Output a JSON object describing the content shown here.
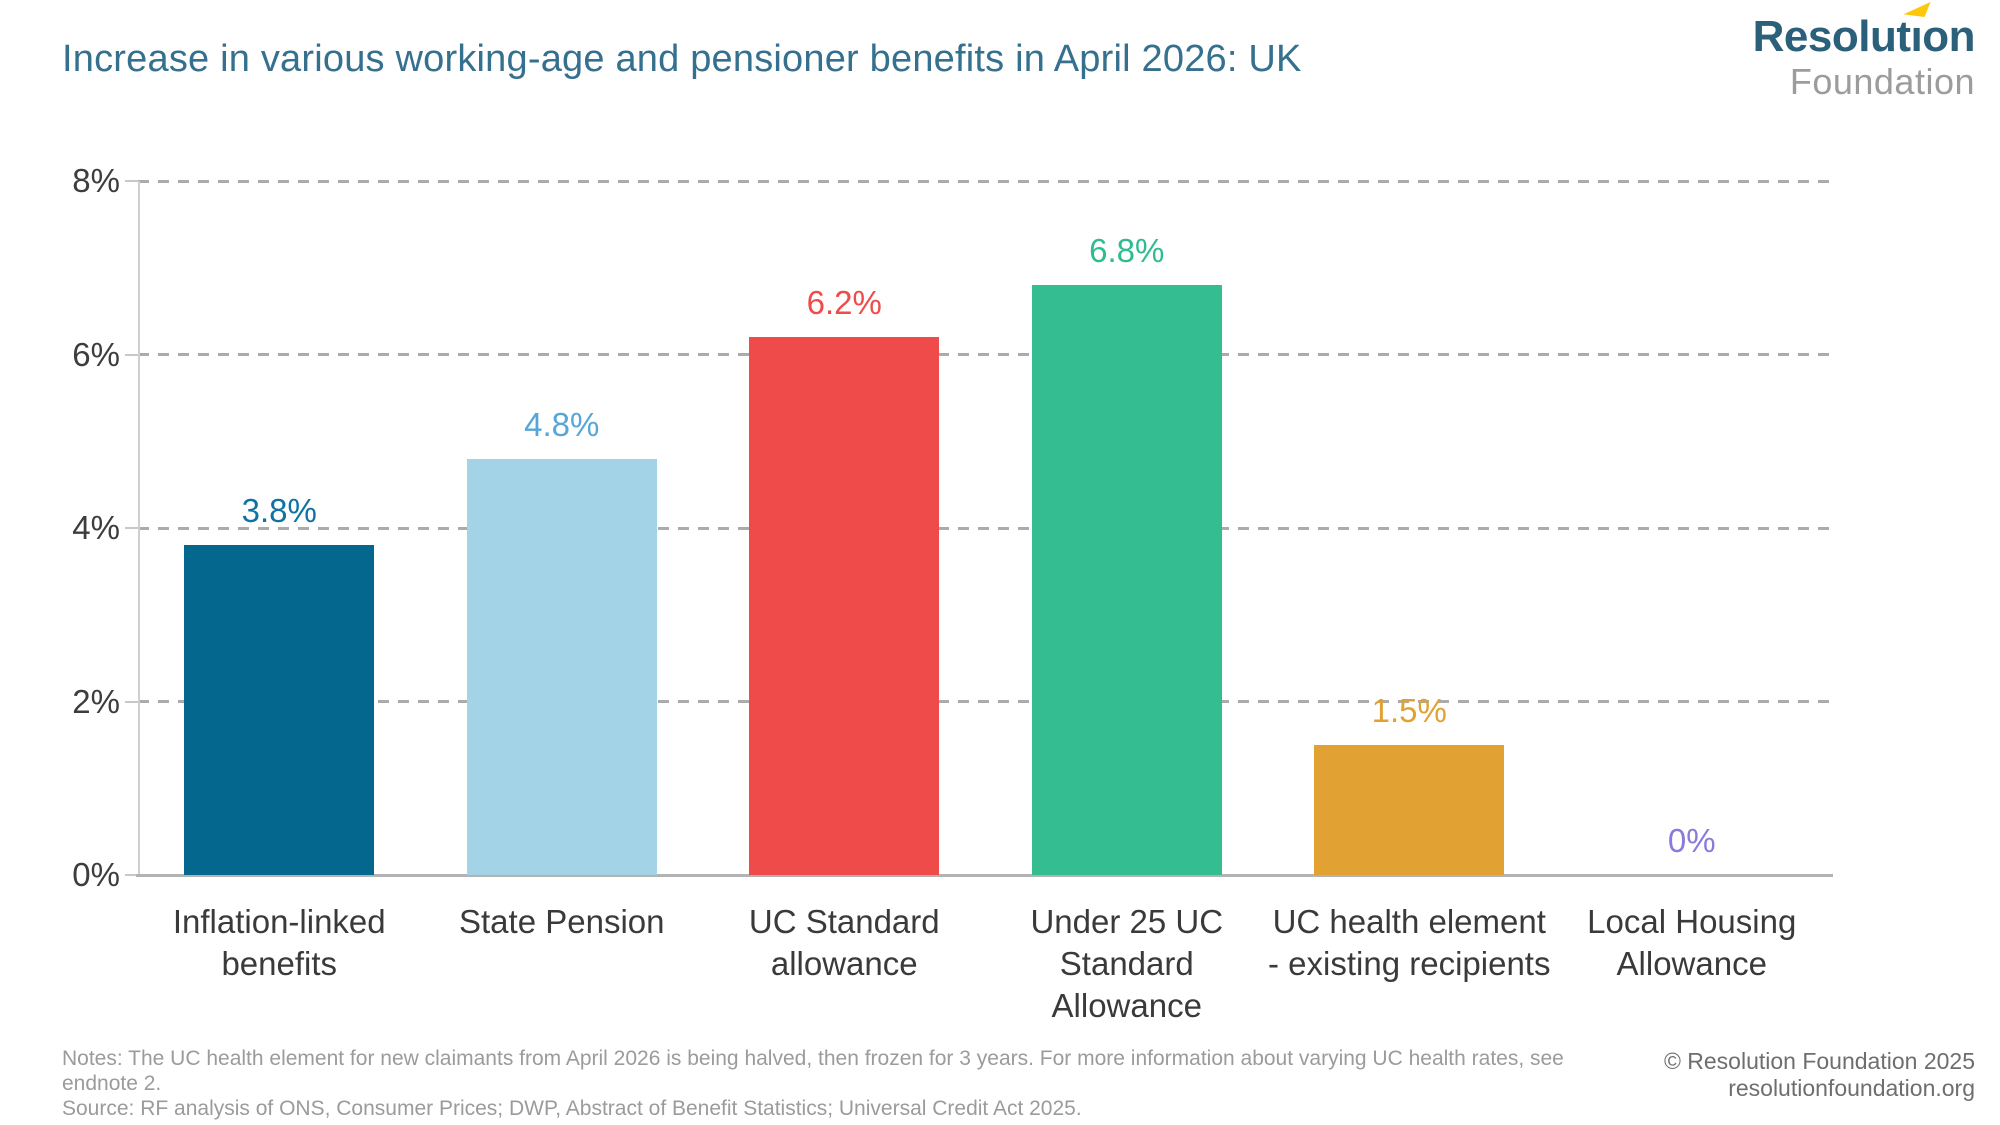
{
  "logo": {
    "brand": "Resolution",
    "brand_left": "Resolut",
    "brand_i": "ı",
    "brand_right": "on",
    "sub": "Foundation",
    "brand_color": "#2B607A",
    "sub_color": "#9C9C9C",
    "accent_color": "#FFC709"
  },
  "chart_data": {
    "type": "bar",
    "title": "Increase in various working-age and pensioner benefits in April 2026: UK",
    "categories": [
      "Inflation-linked benefits",
      "State Pension",
      "UC Standard allowance",
      "Under 25 UC Standard Allowance",
      "UC health element - existing recipients",
      "Local Housing Allowance"
    ],
    "values": [
      3.8,
      4.8,
      6.2,
      6.8,
      1.5,
      0
    ],
    "value_labels": [
      "3.8%",
      "4.8%",
      "6.2%",
      "6.8%",
      "1.5%",
      "0%"
    ],
    "bar_colors": [
      "#04688E",
      "#A3D3E6",
      "#EF4B4A",
      "#33BD90",
      "#E1A233",
      "#8B79DB"
    ],
    "value_label_colors": [
      "#0E72A3",
      "#56A6D7",
      "#EF4B4A",
      "#2DBD90",
      "#E1A233",
      "#8B79DB"
    ],
    "ylim": [
      0,
      8
    ],
    "yticks": [
      {
        "label": "8%",
        "value": 8
      },
      {
        "label": "6%",
        "value": 6
      },
      {
        "label": "4%",
        "value": 4
      },
      {
        "label": "2%",
        "value": 2
      },
      {
        "label": "0%",
        "value": 0
      }
    ],
    "grid": "horizontal-dashed",
    "legend": "none"
  },
  "footer": {
    "notes": "Notes: The UC health element for new claimants from April 2026 is being halved, then frozen for 3 years. For more information about varying UC health rates, see endnote 2.",
    "source": "Source: RF analysis of ONS, Consumer Prices; DWP, Abstract of Benefit Statistics; Universal Credit Act 2025.",
    "copyright": "© Resolution Foundation 2025",
    "website": "resolutionfoundation.org"
  }
}
